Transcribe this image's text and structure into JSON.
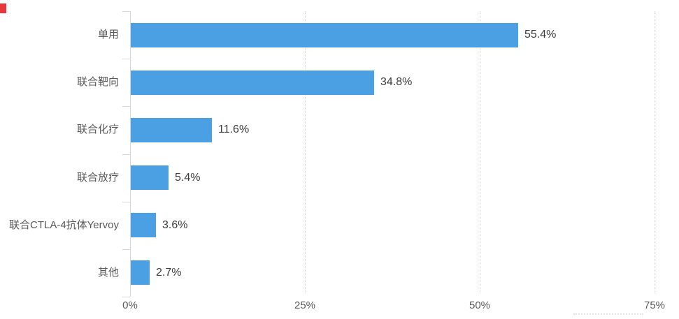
{
  "chart_data": {
    "type": "bar",
    "orientation": "horizontal",
    "title": "",
    "xlabel": "",
    "ylabel": "",
    "categories": [
      "单用",
      "联合靶向",
      "联合化疗",
      "联合放疗",
      "联合CTLA-4抗体Yervoy",
      "其他"
    ],
    "values": [
      55.4,
      34.8,
      11.6,
      5.4,
      3.6,
      2.7
    ],
    "value_labels": [
      "55.4%",
      "34.8%",
      "11.6%",
      "5.4%",
      "3.6%",
      "2.7%"
    ],
    "x_tick_values": [
      0,
      25,
      50,
      75
    ],
    "x_tick_labels": [
      "0%",
      "25%",
      "50%",
      "75%"
    ],
    "xlim": [
      0,
      77.5
    ],
    "grid": true,
    "gridline_style": "dotted-vertical",
    "legend": "none",
    "bar_color": "#4BA0E4",
    "axis_color": "#d7d7d7",
    "category_label_color": "#595959",
    "value_label_color": "#3b3b3b",
    "background_color": "#ffffff"
  },
  "decorations": {
    "red_marker_color": "#e8383d"
  }
}
